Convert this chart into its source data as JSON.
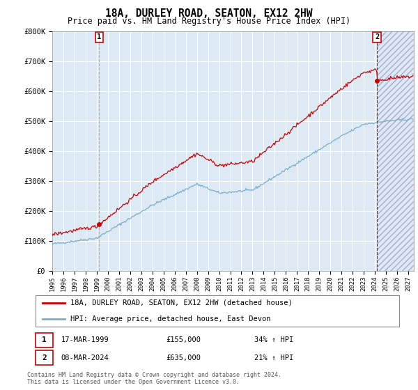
{
  "title": "18A, DURLEY ROAD, SEATON, EX12 2HW",
  "subtitle": "Price paid vs. HM Land Registry's House Price Index (HPI)",
  "ylabel_ticks": [
    "£0",
    "£100K",
    "£200K",
    "£300K",
    "£400K",
    "£500K",
    "£600K",
    "£700K",
    "£800K"
  ],
  "ytick_values": [
    0,
    100000,
    200000,
    300000,
    400000,
    500000,
    600000,
    700000,
    800000
  ],
  "ylim": [
    0,
    800000
  ],
  "xlim_start": 1995.0,
  "xlim_end": 2027.5,
  "xtick_years": [
    1995,
    1996,
    1997,
    1998,
    1999,
    2000,
    2001,
    2002,
    2003,
    2004,
    2005,
    2006,
    2007,
    2008,
    2009,
    2010,
    2011,
    2012,
    2013,
    2014,
    2015,
    2016,
    2017,
    2018,
    2019,
    2020,
    2021,
    2022,
    2023,
    2024,
    2025,
    2026,
    2027
  ],
  "legend_line1": "18A, DURLEY ROAD, SEATON, EX12 2HW (detached house)",
  "legend_line2": "HPI: Average price, detached house, East Devon",
  "red_line_color": "#cc0000",
  "blue_line_color": "#7aadcc",
  "background_color": "#ddeaf5",
  "grid_color": "#ffffff",
  "transaction1_year": 1999.21,
  "transaction1_price": 155000,
  "transaction1_label": "1",
  "transaction1_date": "17-MAR-1999",
  "transaction1_hpi": "34% ↑ HPI",
  "transaction2_year": 2024.19,
  "transaction2_price": 635000,
  "transaction2_label": "2",
  "transaction2_date": "08-MAR-2024",
  "transaction2_hpi": "21% ↑ HPI",
  "footer": "Contains HM Land Registry data © Crown copyright and database right 2024.\nThis data is licensed under the Open Government Licence v3.0."
}
